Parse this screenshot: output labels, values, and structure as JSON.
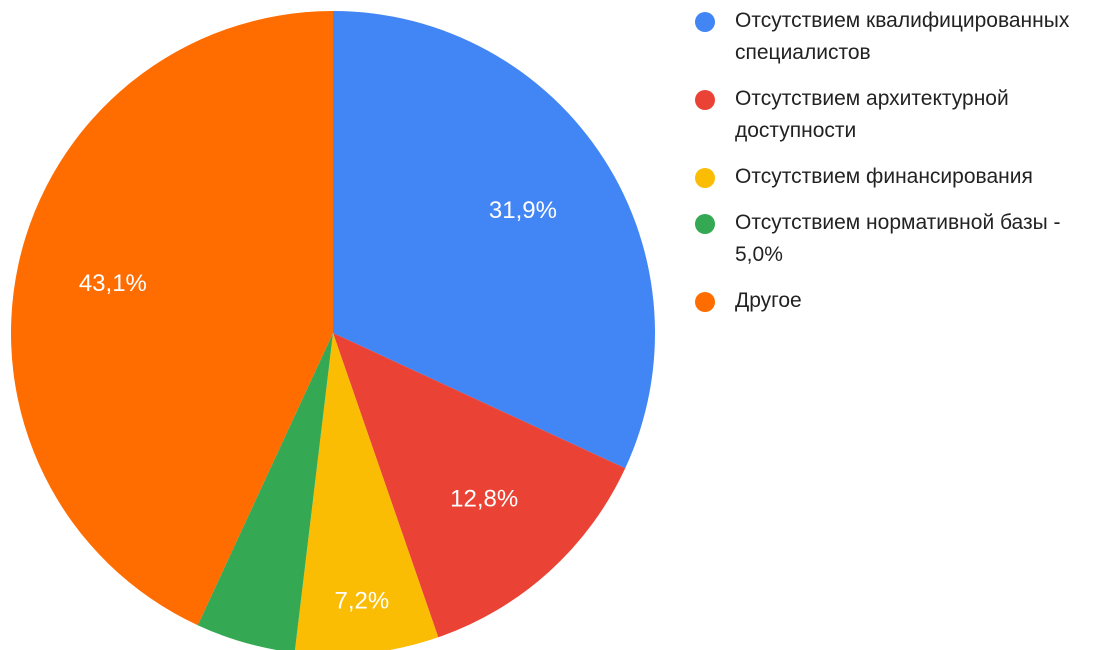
{
  "chart_data": {
    "type": "pie",
    "categories": [
      "Отсутствием квалифицированных специалистов",
      "Отсутствием архитектурной доступности",
      "Отсутствием финансирования",
      "Отсутствием нормативной базы - 5,0%",
      "Другое"
    ],
    "values": [
      31.9,
      12.8,
      7.2,
      5.0,
      43.1
    ],
    "value_labels": [
      "31,9%",
      "12,8%",
      "7,2%",
      null,
      "43,1%"
    ],
    "colors": [
      "#4285f4",
      "#ea4335",
      "#fbbc04",
      "#34a853",
      "#ff6d01"
    ],
    "legend": "right"
  }
}
